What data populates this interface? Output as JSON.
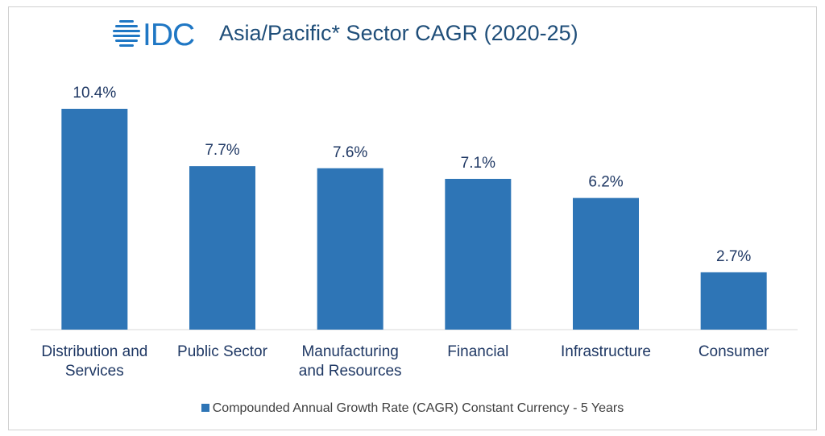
{
  "header": {
    "logo_text": "IDC",
    "title": "Asia/Pacific* Sector CAGR (2020-25)"
  },
  "chart_data": {
    "type": "bar",
    "title": "Asia/Pacific* Sector CAGR (2020-25)",
    "categories": [
      [
        "Distribution and",
        "Services"
      ],
      [
        "Public Sector"
      ],
      [
        "Manufacturing",
        "and Resources"
      ],
      [
        "Financial"
      ],
      [
        "Infrastructure"
      ],
      [
        "Consumer"
      ]
    ],
    "series": [
      {
        "name": "Compounded Annual Growth Rate (CAGR) Constant Currency - 5 Years",
        "values": [
          10.4,
          7.7,
          7.6,
          7.1,
          6.2,
          2.7
        ],
        "labels": [
          "10.4%",
          "7.7%",
          "7.6%",
          "7.1%",
          "6.2%",
          "2.7%"
        ]
      }
    ],
    "ylim": [
      0,
      10.4
    ],
    "legend_position": "bottom",
    "grid": false,
    "bar_color": "#2e75b6",
    "label_color": "#1f3864"
  },
  "colors": {
    "brand": "#1f77c4",
    "title": "#1f4e79"
  }
}
